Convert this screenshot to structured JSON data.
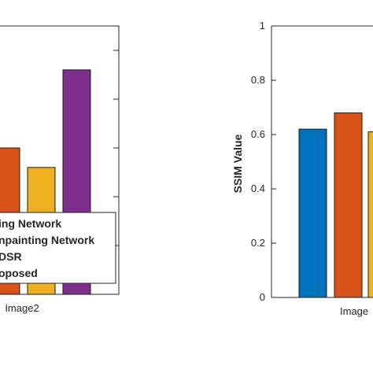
{
  "colors": {
    "series": [
      "#0072BD",
      "#D95319",
      "#EDB120",
      "#7E2F8E"
    ],
    "axis": "#262626",
    "grid": "#e6e6e6"
  },
  "chart_data": [
    {
      "type": "bar",
      "categories": [
        "Image2"
      ],
      "series": [
        {
          "name": "Inpainting Network",
          "values": [
            null
          ]
        },
        {
          "name": "Inpainting Network",
          "values": [
            0.6
          ]
        },
        {
          "name": "SDSR",
          "values": [
            0.56
          ]
        },
        {
          "name": "Proposed",
          "values": [
            0.76
          ]
        }
      ],
      "ylim": [
        0.3,
        0.85
      ],
      "grid": false,
      "legend": "bottom-right"
    },
    {
      "type": "bar",
      "categories": [
        "Image"
      ],
      "series": [
        {
          "values": [
            0.62
          ]
        },
        {
          "values": [
            0.68
          ]
        },
        {
          "values": [
            0.61
          ]
        }
      ],
      "ylabel": "SSIM Value",
      "ylim": [
        0,
        1
      ],
      "yticks": [
        "0",
        "0.2",
        "0.4",
        "0.6",
        "0.8",
        "1"
      ],
      "grid": false
    }
  ]
}
